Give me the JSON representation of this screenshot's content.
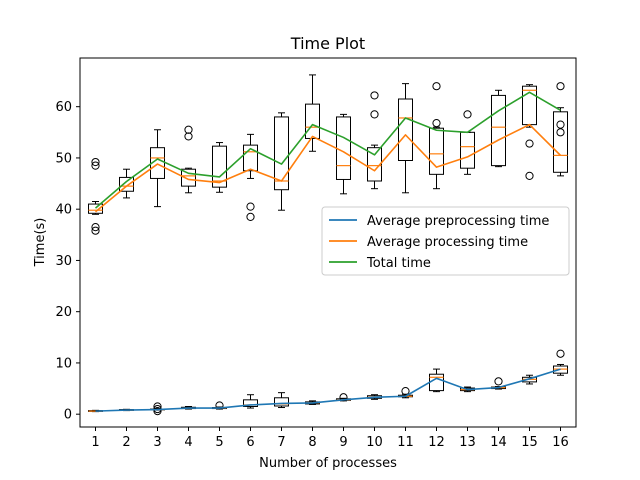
{
  "chart_data": {
    "type": "box+line",
    "title": "Time Plot",
    "xlabel": "Number of processes",
    "ylabel": "Time(s)",
    "xlim": [
      0.5,
      16.5
    ],
    "ylim": [
      -2.5,
      69.5
    ],
    "categories": [
      1,
      2,
      3,
      4,
      5,
      6,
      7,
      8,
      9,
      10,
      11,
      12,
      13,
      14,
      15,
      16
    ],
    "category_labels": [
      "1",
      "2",
      "3",
      "4",
      "5",
      "6",
      "7",
      "8",
      "9",
      "10",
      "11",
      "12",
      "13",
      "14",
      "15",
      "16"
    ],
    "yticks": [
      0,
      10,
      20,
      30,
      40,
      50,
      60
    ],
    "ytick_labels": [
      "0",
      "10",
      "20",
      "30",
      "40",
      "50",
      "60"
    ],
    "legend": {
      "placement": "center-right",
      "entries": [
        {
          "label": "Average preprocessing time",
          "color": "#1f77b4"
        },
        {
          "label": "Average processing time",
          "color": "#ff7f0e"
        },
        {
          "label": "Total time",
          "color": "#2ca02c"
        }
      ]
    },
    "series": [
      {
        "name": "Average preprocessing time",
        "color": "#1f77b4",
        "values": [
          0.6,
          0.8,
          0.9,
          1.2,
          1.2,
          1.8,
          2.1,
          2.2,
          2.8,
          3.3,
          3.5,
          7.0,
          4.8,
          5.2,
          6.9,
          8.8
        ]
      },
      {
        "name": "Average processing time",
        "color": "#ff7f0e",
        "values": [
          39.5,
          44.5,
          48.8,
          45.8,
          45.2,
          47.8,
          45.5,
          54.2,
          51.2,
          47.5,
          54.5,
          48.2,
          50.2,
          53.5,
          56.5,
          50.5
        ]
      },
      {
        "name": "Total time",
        "color": "#2ca02c",
        "values": [
          40.2,
          45.4,
          49.8,
          47.0,
          46.3,
          51.8,
          48.8,
          56.5,
          54.0,
          50.6,
          57.8,
          55.4,
          55.0,
          59.2,
          62.8,
          59.3
        ]
      }
    ],
    "boxes": {
      "processing": [
        {
          "x": 1,
          "whislo": 39.0,
          "q1": 39.2,
          "med": 39.8,
          "q3": 41.0,
          "whishi": 41.5,
          "fliers": [
            36.5,
            35.8,
            48.5,
            49.2
          ]
        },
        {
          "x": 2,
          "whislo": 42.2,
          "q1": 43.5,
          "med": 44.5,
          "q3": 46.2,
          "whishi": 47.8,
          "fliers": []
        },
        {
          "x": 3,
          "whislo": 40.5,
          "q1": 46.0,
          "med": 50.0,
          "q3": 52.0,
          "whishi": 55.5,
          "fliers": []
        },
        {
          "x": 4,
          "whislo": 43.2,
          "q1": 44.5,
          "med": 46.5,
          "q3": 47.8,
          "whishi": 48.0,
          "fliers": [
            54.2,
            55.5
          ]
        },
        {
          "x": 5,
          "whislo": 43.3,
          "q1": 44.3,
          "med": 45.5,
          "q3": 52.3,
          "whishi": 53.0,
          "fliers": []
        },
        {
          "x": 6,
          "whislo": 46.0,
          "q1": 47.5,
          "med": 51.2,
          "q3": 52.5,
          "whishi": 54.6,
          "fliers": [
            38.5,
            40.5
          ]
        },
        {
          "x": 7,
          "whislo": 39.8,
          "q1": 43.8,
          "med": 45.5,
          "q3": 58.0,
          "whishi": 58.8,
          "fliers": []
        },
        {
          "x": 8,
          "whislo": 51.3,
          "q1": 53.8,
          "med": 56.0,
          "q3": 60.5,
          "whishi": 66.2,
          "fliers": []
        },
        {
          "x": 9,
          "whislo": 43.0,
          "q1": 45.8,
          "med": 48.5,
          "q3": 58.0,
          "whishi": 58.5,
          "fliers": []
        },
        {
          "x": 10,
          "whislo": 44.0,
          "q1": 45.5,
          "med": 48.5,
          "q3": 52.0,
          "whishi": 52.5,
          "fliers": [
            58.5,
            62.2
          ]
        },
        {
          "x": 11,
          "whislo": 43.2,
          "q1": 49.5,
          "med": 57.8,
          "q3": 61.5,
          "whishi": 64.5,
          "fliers": []
        },
        {
          "x": 12,
          "whislo": 44.0,
          "q1": 46.8,
          "med": 50.8,
          "q3": 55.8,
          "whishi": 56.0,
          "fliers": [
            56.8,
            64.0
          ]
        },
        {
          "x": 13,
          "whislo": 46.8,
          "q1": 48.0,
          "med": 52.2,
          "q3": 55.0,
          "whishi": 55.0,
          "fliers": [
            58.5
          ]
        },
        {
          "x": 14,
          "whislo": 48.3,
          "q1": 48.5,
          "med": 56.0,
          "q3": 62.2,
          "whishi": 63.2,
          "fliers": []
        },
        {
          "x": 15,
          "whislo": 56.0,
          "q1": 56.5,
          "med": 63.2,
          "q3": 64.0,
          "whishi": 64.3,
          "fliers": [
            46.5,
            52.8
          ]
        },
        {
          "x": 16,
          "whislo": 46.5,
          "q1": 47.2,
          "med": 50.5,
          "q3": 59.0,
          "whishi": 59.8,
          "fliers": [
            55.0,
            56.5,
            64.0
          ]
        }
      ],
      "preprocessing": [
        {
          "x": 1,
          "whislo": 0.5,
          "q1": 0.55,
          "med": 0.6,
          "q3": 0.7,
          "whishi": 0.75,
          "fliers": []
        },
        {
          "x": 2,
          "whislo": 0.7,
          "q1": 0.75,
          "med": 0.8,
          "q3": 0.9,
          "whishi": 0.95,
          "fliers": []
        },
        {
          "x": 3,
          "whislo": 0.8,
          "q1": 0.85,
          "med": 0.9,
          "q3": 1.0,
          "whishi": 1.1,
          "fliers": [
            0.6,
            1.0,
            1.5
          ]
        },
        {
          "x": 4,
          "whislo": 1.0,
          "q1": 1.1,
          "med": 1.2,
          "q3": 1.35,
          "whishi": 1.5,
          "fliers": []
        },
        {
          "x": 5,
          "whislo": 1.0,
          "q1": 1.1,
          "med": 1.2,
          "q3": 1.3,
          "whishi": 1.4,
          "fliers": [
            1.7
          ]
        },
        {
          "x": 6,
          "whislo": 1.2,
          "q1": 1.5,
          "med": 1.8,
          "q3": 2.8,
          "whishi": 3.8,
          "fliers": []
        },
        {
          "x": 7,
          "whislo": 1.3,
          "q1": 1.6,
          "med": 2.0,
          "q3": 3.2,
          "whishi": 4.2,
          "fliers": []
        },
        {
          "x": 8,
          "whislo": 1.9,
          "q1": 2.0,
          "med": 2.2,
          "q3": 2.4,
          "whishi": 2.6,
          "fliers": []
        },
        {
          "x": 9,
          "whislo": 2.6,
          "q1": 2.7,
          "med": 2.8,
          "q3": 3.0,
          "whishi": 3.1,
          "fliers": [
            3.3
          ]
        },
        {
          "x": 10,
          "whislo": 2.9,
          "q1": 3.1,
          "med": 3.3,
          "q3": 3.6,
          "whishi": 3.8,
          "fliers": []
        },
        {
          "x": 11,
          "whislo": 3.2,
          "q1": 3.4,
          "med": 3.5,
          "q3": 3.7,
          "whishi": 3.9,
          "fliers": [
            4.5
          ]
        },
        {
          "x": 12,
          "whislo": 4.4,
          "q1": 4.6,
          "med": 7.2,
          "q3": 7.8,
          "whishi": 8.8,
          "fliers": []
        },
        {
          "x": 13,
          "whislo": 4.4,
          "q1": 4.6,
          "med": 4.8,
          "q3": 5.1,
          "whishi": 5.3,
          "fliers": []
        },
        {
          "x": 14,
          "whislo": 4.9,
          "q1": 5.0,
          "med": 5.2,
          "q3": 5.3,
          "whishi": 5.4,
          "fliers": [
            6.4
          ]
        },
        {
          "x": 15,
          "whislo": 5.9,
          "q1": 6.3,
          "med": 6.8,
          "q3": 7.2,
          "whishi": 7.6,
          "fliers": []
        },
        {
          "x": 16,
          "whislo": 7.6,
          "q1": 8.0,
          "med": 8.8,
          "q3": 9.4,
          "whishi": 9.7,
          "fliers": [
            11.8
          ]
        }
      ]
    }
  }
}
